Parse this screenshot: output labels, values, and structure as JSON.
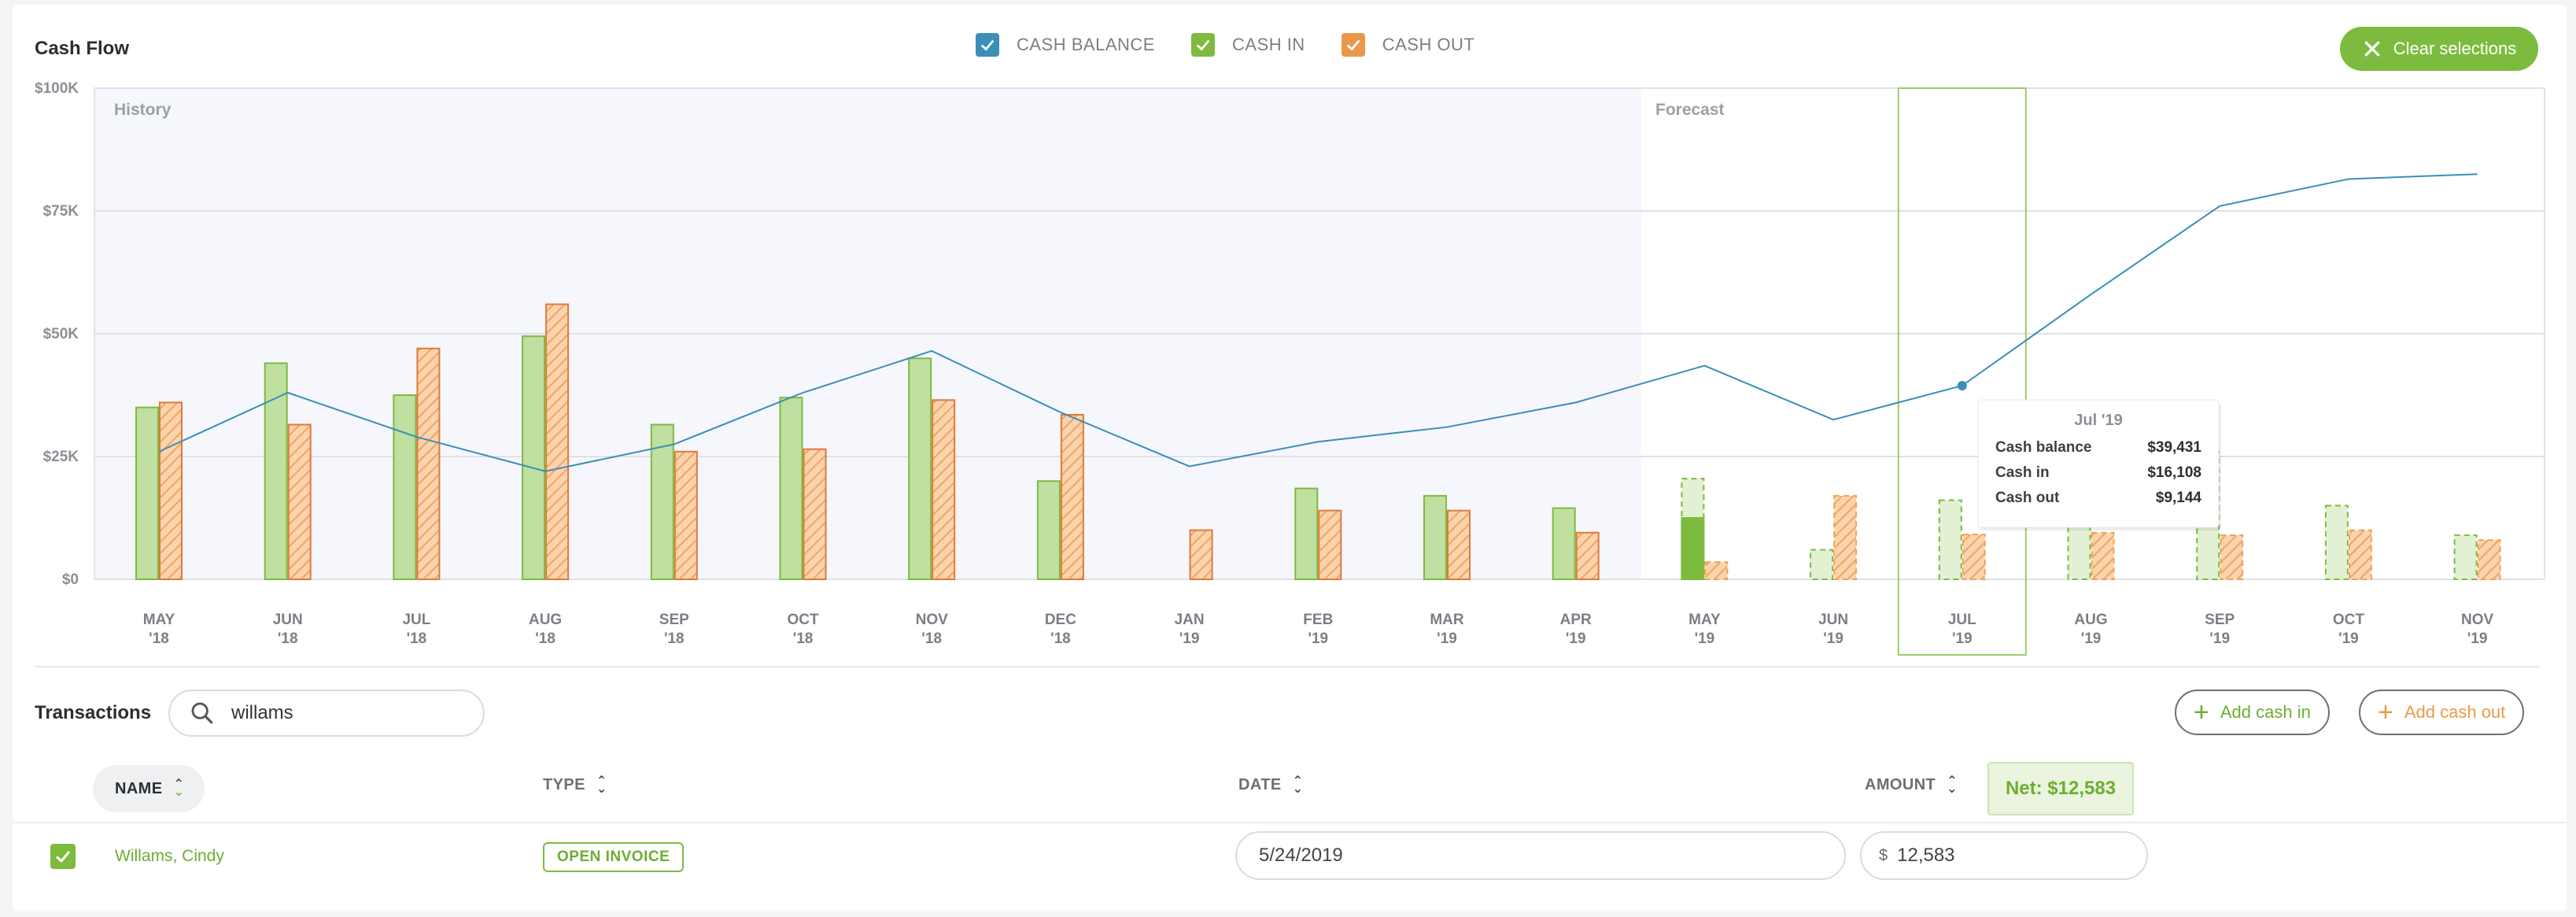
{
  "header": {
    "title": "Cash Flow",
    "clear_label": "Clear selections"
  },
  "legend": [
    {
      "label": "CASH BALANCE",
      "color": "#3a8fb7",
      "checked": true
    },
    {
      "label": "CASH IN",
      "color": "#7dbb3f",
      "checked": true
    },
    {
      "label": "CASH OUT",
      "color": "#e89a4a",
      "checked": true
    }
  ],
  "chart_data": {
    "type": "bar",
    "sections": [
      "History",
      "Forecast"
    ],
    "forecast_starts_at": "MAY '19",
    "ylim": [
      0,
      100000
    ],
    "yticks": [
      {
        "value": 0,
        "label": "$0"
      },
      {
        "value": 25000,
        "label": "$25K"
      },
      {
        "value": 50000,
        "label": "$50K"
      },
      {
        "value": 75000,
        "label": "$75K"
      },
      {
        "value": 100000,
        "label": "$100K"
      }
    ],
    "categories": [
      [
        "MAY",
        "'18"
      ],
      [
        "JUN",
        "'18"
      ],
      [
        "JUL",
        "'18"
      ],
      [
        "AUG",
        "'18"
      ],
      [
        "SEP",
        "'18"
      ],
      [
        "OCT",
        "'18"
      ],
      [
        "NOV",
        "'18"
      ],
      [
        "DEC",
        "'18"
      ],
      [
        "JAN",
        "'19"
      ],
      [
        "FEB",
        "'19"
      ],
      [
        "MAR",
        "'19"
      ],
      [
        "APR",
        "'19"
      ],
      [
        "MAY",
        "'19"
      ],
      [
        "JUN",
        "'19"
      ],
      [
        "JUL",
        "'19"
      ],
      [
        "AUG",
        "'19"
      ],
      [
        "SEP",
        "'19"
      ],
      [
        "OCT",
        "'19"
      ],
      [
        "NOV",
        "'19"
      ]
    ],
    "series": [
      {
        "name": "Cash in",
        "values": [
          35000,
          44000,
          37500,
          49500,
          31500,
          37000,
          45000,
          20000,
          0,
          18500,
          17000,
          14500,
          20500,
          6000,
          16108,
          18000,
          26000,
          15000,
          9000
        ]
      },
      {
        "name": "Cash out",
        "values": [
          36000,
          31500,
          47000,
          56000,
          26000,
          26500,
          36500,
          33500,
          10000,
          14000,
          14000,
          9500,
          3500,
          17000,
          9144,
          9500,
          9000,
          10000,
          8000
        ]
      },
      {
        "name": "Cash balance",
        "values": [
          26000,
          38000,
          29000,
          22000,
          27500,
          38000,
          46500,
          34000,
          23000,
          28000,
          31000,
          36000,
          43500,
          32500,
          39431,
          58000,
          76000,
          81500,
          82500
        ]
      }
    ],
    "forecast_actual_cash_in": {
      "category": "MAY '19",
      "value": 12500
    },
    "selected": {
      "category": "JUL '19",
      "tooltip_title": "Jul '19",
      "rows": [
        {
          "label": "Cash balance",
          "value": "$39,431"
        },
        {
          "label": "Cash in",
          "value": "$16,108"
        },
        {
          "label": "Cash out",
          "value": "$9,144"
        }
      ]
    }
  },
  "transactions": {
    "title": "Transactions",
    "search_value": "willams",
    "add_cash_in": "Add cash in",
    "add_cash_out": "Add cash out",
    "columns": {
      "name": "NAME",
      "type": "TYPE",
      "date": "DATE",
      "amount": "AMOUNT"
    },
    "net_label": "Net: $12,583",
    "rows": [
      {
        "name": "Willams, Cindy",
        "type": "OPEN INVOICE",
        "date": "5/24/2019",
        "currency": "$",
        "amount": "12,583",
        "checked": true
      }
    ]
  },
  "colors": {
    "cash_in": "#7dbb3f",
    "cash_in_fill": "#bfe0a0",
    "cash_out": "#e89a4a",
    "balance": "#3a8fb7",
    "history_bg": "#f6f6fd"
  }
}
